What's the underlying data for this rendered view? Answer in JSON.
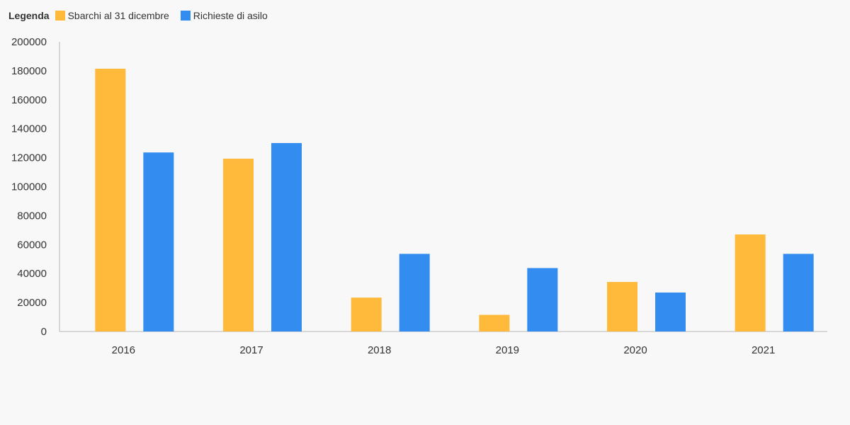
{
  "legend": {
    "title": "Legenda",
    "items": [
      {
        "label": "Sbarchi al 31 dicembre",
        "color": "#ffb93b"
      },
      {
        "label": "Richieste di asilo",
        "color": "#338cef"
      }
    ]
  },
  "chart_data": {
    "type": "bar",
    "title": "",
    "xlabel": "",
    "ylabel": "",
    "categories": [
      "2016",
      "2017",
      "2018",
      "2019",
      "2020",
      "2021"
    ],
    "series": [
      {
        "name": "Sbarchi al 31 dicembre",
        "color": "#ffb93b",
        "values": [
          181400,
          119300,
          23400,
          11500,
          34200,
          67000
        ]
      },
      {
        "name": "Richieste di asilo",
        "color": "#338cef",
        "values": [
          123600,
          130100,
          53600,
          43800,
          26900,
          53600
        ]
      }
    ],
    "ylim": [
      0,
      200000
    ],
    "yticks": [
      "0",
      "20000",
      "40000",
      "60000",
      "80000",
      "100000",
      "120000",
      "140000",
      "160000",
      "180000",
      "200000"
    ],
    "grid": false,
    "legend_position": "top-left"
  }
}
